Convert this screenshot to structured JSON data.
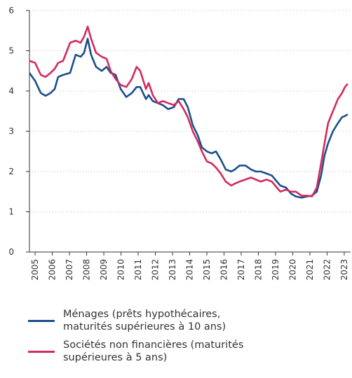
{
  "chart_data": {
    "type": "line",
    "x": [
      2004.67,
      2005.0,
      2005.33,
      2005.61,
      2005.9,
      2006.14,
      2006.34,
      2006.63,
      2007.04,
      2007.36,
      2007.65,
      2007.85,
      2008.06,
      2008.26,
      2008.55,
      2008.88,
      2009.16,
      2009.4,
      2009.69,
      2009.98,
      2010.31,
      2010.63,
      2010.91,
      2011.12,
      2011.45,
      2011.61,
      2011.85,
      2012.14,
      2012.43,
      2012.75,
      2013.08,
      2013.36,
      2013.65,
      2013.89,
      2014.18,
      2014.47,
      2014.71,
      2015.0,
      2015.28,
      2015.53,
      2015.81,
      2016.1,
      2016.42,
      2016.63,
      2016.91,
      2017.24,
      2017.57,
      2017.85,
      2018.14,
      2018.47,
      2018.79,
      2019.08,
      2019.28,
      2019.61,
      2019.9,
      2020.18,
      2020.51,
      2020.83,
      2021.12,
      2021.4,
      2021.65,
      2021.85,
      2022.06,
      2022.34,
      2022.63,
      2022.87,
      2023.04,
      2023.2
    ],
    "series": [
      {
        "name": "Ménages (prêts hypothécaires, maturités supérieures à 10 ans)",
        "color": "#1a4f8b",
        "values": [
          4.45,
          4.25,
          3.95,
          3.88,
          3.95,
          4.05,
          4.35,
          4.4,
          4.45,
          4.9,
          4.85,
          4.95,
          5.3,
          4.9,
          4.6,
          4.5,
          4.6,
          4.45,
          4.4,
          4.05,
          3.85,
          3.95,
          4.1,
          4.1,
          3.8,
          3.9,
          3.75,
          3.7,
          3.65,
          3.55,
          3.6,
          3.8,
          3.8,
          3.6,
          3.15,
          2.9,
          2.6,
          2.5,
          2.45,
          2.5,
          2.3,
          2.05,
          2.0,
          2.05,
          2.15,
          2.15,
          2.05,
          2.0,
          2.0,
          1.95,
          1.9,
          1.75,
          1.65,
          1.6,
          1.45,
          1.38,
          1.35,
          1.38,
          1.4,
          1.5,
          1.9,
          2.4,
          2.7,
          3.0,
          3.2,
          3.35,
          3.38,
          3.42
        ]
      },
      {
        "name": "Sociétés non financières (maturités supérieures à 5 ans)",
        "color": "#d42a5c",
        "values": [
          4.75,
          4.7,
          4.4,
          4.35,
          4.45,
          4.55,
          4.7,
          4.75,
          5.2,
          5.25,
          5.2,
          5.35,
          5.6,
          5.3,
          4.95,
          4.85,
          4.8,
          4.5,
          4.3,
          4.15,
          4.1,
          4.3,
          4.6,
          4.5,
          4.05,
          4.2,
          3.9,
          3.7,
          3.75,
          3.7,
          3.65,
          3.75,
          3.55,
          3.35,
          3.0,
          2.75,
          2.5,
          2.25,
          2.2,
          2.1,
          1.95,
          1.75,
          1.65,
          1.7,
          1.75,
          1.8,
          1.85,
          1.8,
          1.75,
          1.8,
          1.75,
          1.6,
          1.5,
          1.55,
          1.5,
          1.5,
          1.4,
          1.4,
          1.38,
          1.6,
          2.2,
          2.7,
          3.2,
          3.5,
          3.8,
          3.95,
          4.1,
          4.18
        ]
      }
    ],
    "xlim": [
      2004.67,
      2023.37
    ],
    "xticks": [
      2005,
      2006,
      2007,
      2008,
      2009,
      2010,
      2011,
      2012,
      2013,
      2014,
      2015,
      2016,
      2017,
      2018,
      2019,
      2020,
      2021,
      2022,
      2023
    ],
    "ylim": [
      0,
      6
    ],
    "yticks": [
      0,
      1,
      2,
      3,
      4,
      5,
      6
    ],
    "grid": true
  }
}
